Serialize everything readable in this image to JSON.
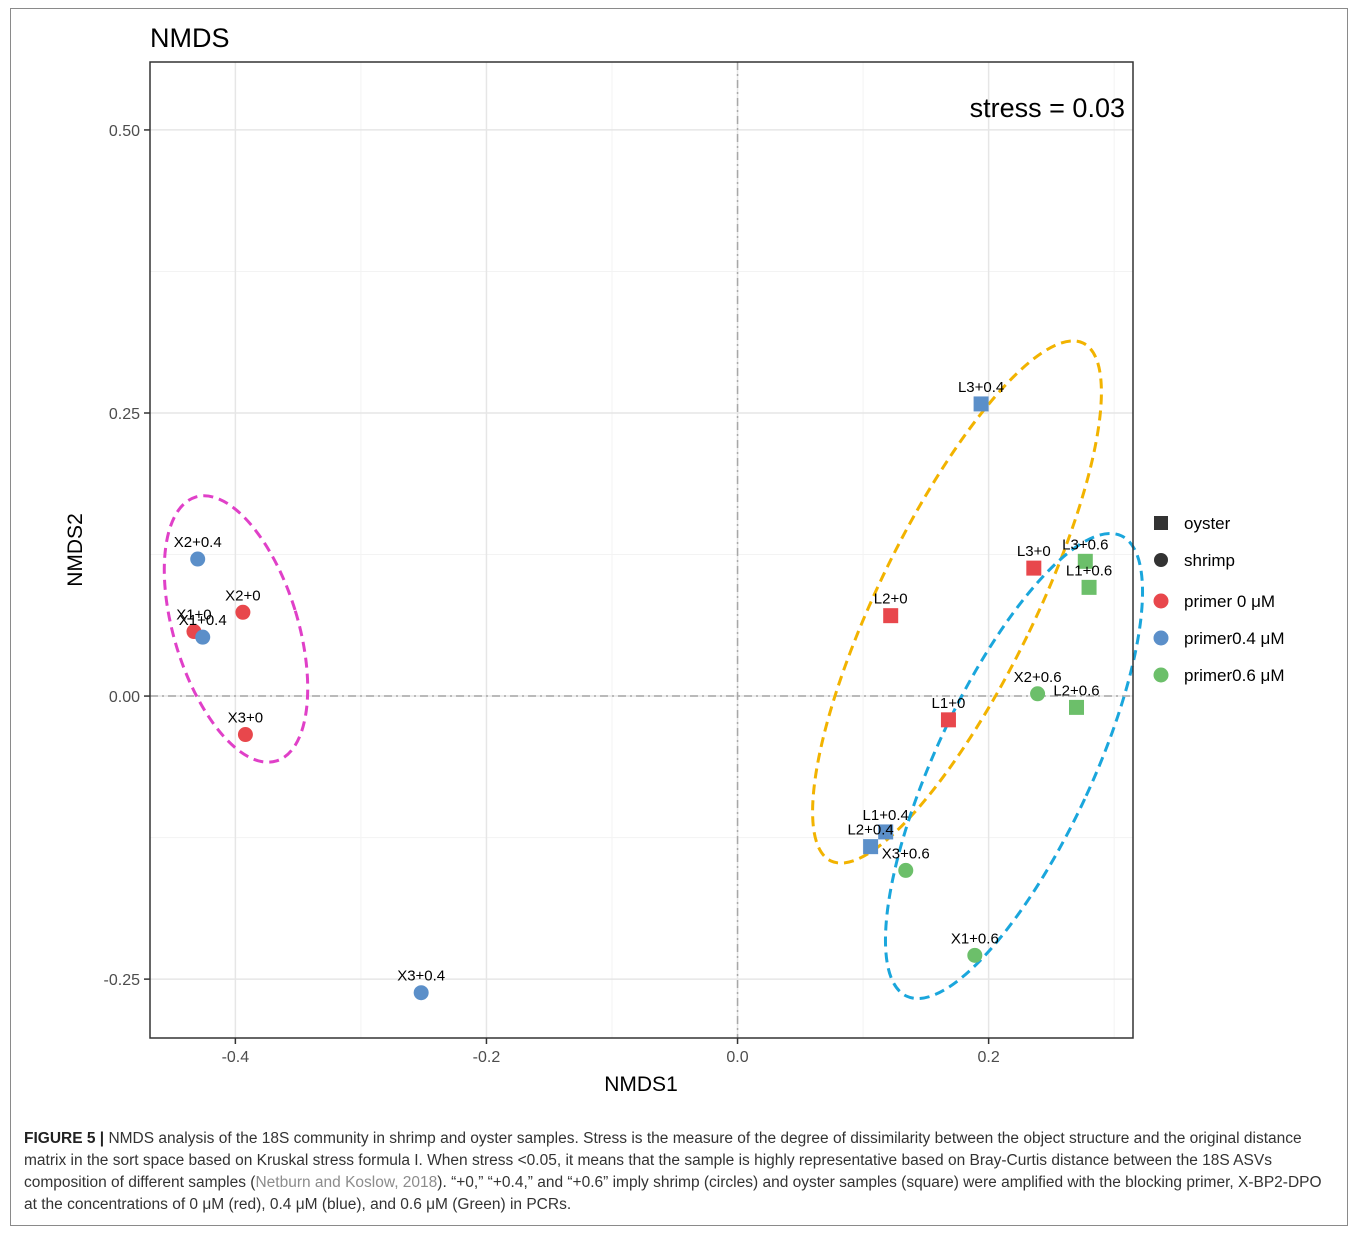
{
  "chart_data": {
    "type": "scatter",
    "title": "NMDS",
    "xlabel": "NMDS1",
    "ylabel": "NMDS2",
    "xlim": [
      -0.468,
      0.315
    ],
    "ylim": [
      -0.302,
      0.56
    ],
    "x_ticks": [
      -0.4,
      -0.2,
      0.0,
      0.2
    ],
    "x_tick_labels": [
      "-0.4",
      "-0.2",
      "0.0",
      "0.2"
    ],
    "y_ticks": [
      -0.25,
      0.0,
      0.25,
      0.5
    ],
    "y_tick_labels": [
      "-0.25",
      "0.00",
      "0.25",
      "0.50"
    ],
    "grid": true,
    "annotation": "stress = 0.03",
    "legend_position": "right",
    "shape_legend": [
      {
        "label": "oyster",
        "shape": "square"
      },
      {
        "label": "shrimp",
        "shape": "circle"
      }
    ],
    "color_legend": [
      {
        "label": "primer  0  μM",
        "color": "#e8474c"
      },
      {
        "label": "primer0.4 μM",
        "color": "#5b8fc9"
      },
      {
        "label": "primer0.6 μM",
        "color": "#6cbf6a"
      }
    ],
    "points": [
      {
        "label": "X2+0.4",
        "x": -0.43,
        "y": 0.121,
        "shape": "circle",
        "group": 1
      },
      {
        "label": "X2+0",
        "x": -0.394,
        "y": 0.074,
        "shape": "circle",
        "group": 0
      },
      {
        "label": "X1+0",
        "x": -0.433,
        "y": 0.057,
        "shape": "circle",
        "group": 0
      },
      {
        "label": "X1+0.4",
        "x": -0.426,
        "y": 0.052,
        "shape": "circle",
        "group": 1
      },
      {
        "label": "X3+0",
        "x": -0.392,
        "y": -0.034,
        "shape": "circle",
        "group": 0
      },
      {
        "label": "X3+0.4",
        "x": -0.252,
        "y": -0.262,
        "shape": "circle",
        "group": 1
      },
      {
        "label": "L3+0.4",
        "x": 0.194,
        "y": 0.258,
        "shape": "square",
        "group": 1
      },
      {
        "label": "L3+0",
        "x": 0.236,
        "y": 0.113,
        "shape": "square",
        "group": 0
      },
      {
        "label": "L3+0.6",
        "x": 0.277,
        "y": 0.119,
        "shape": "square",
        "group": 2
      },
      {
        "label": "L1+0.6",
        "x": 0.28,
        "y": 0.096,
        "shape": "square",
        "group": 2
      },
      {
        "label": "L2+0",
        "x": 0.122,
        "y": 0.071,
        "shape": "square",
        "group": 0
      },
      {
        "label": "X2+0.6",
        "x": 0.239,
        "y": 0.002,
        "shape": "circle",
        "group": 2
      },
      {
        "label": "L2+0.6",
        "x": 0.27,
        "y": -0.01,
        "shape": "square",
        "group": 2
      },
      {
        "label": "L1+0",
        "x": 0.168,
        "y": -0.021,
        "shape": "square",
        "group": 0
      },
      {
        "label": "L1+0.4",
        "x": 0.118,
        "y": -0.12,
        "shape": "square",
        "group": 1
      },
      {
        "label": "L2+0.4",
        "x": 0.106,
        "y": -0.133,
        "shape": "square",
        "group": 1
      },
      {
        "label": "X3+0.6",
        "x": 0.134,
        "y": -0.154,
        "shape": "circle",
        "group": 2
      },
      {
        "label": "X1+0.6",
        "x": 0.189,
        "y": -0.229,
        "shape": "circle",
        "group": 2
      }
    ]
  },
  "caption": {
    "figure_label": "FIGURE 5 |",
    "text_before_ref": " NMDS analysis of the 18S community in shrimp and oyster samples. Stress is the measure of the degree of dissimilarity between the object structure and the original distance matrix in the sort space based on Kruskal stress formula I. When stress <0.05, it means that the sample is highly representative based on Bray-Curtis distance between the 18S ASVs composition of different samples (",
    "reference": "Netburn and Koslow, 2018",
    "text_after_ref": "). “+0,” “+0.4,” and “+0.6” imply shrimp (circles) and oyster samples (square) were amplified with the blocking primer, X-BP2-DPO at the concentrations of 0 μM (red), 0.4 μM (blue), and 0.6 μM (Green) in PCRs."
  }
}
